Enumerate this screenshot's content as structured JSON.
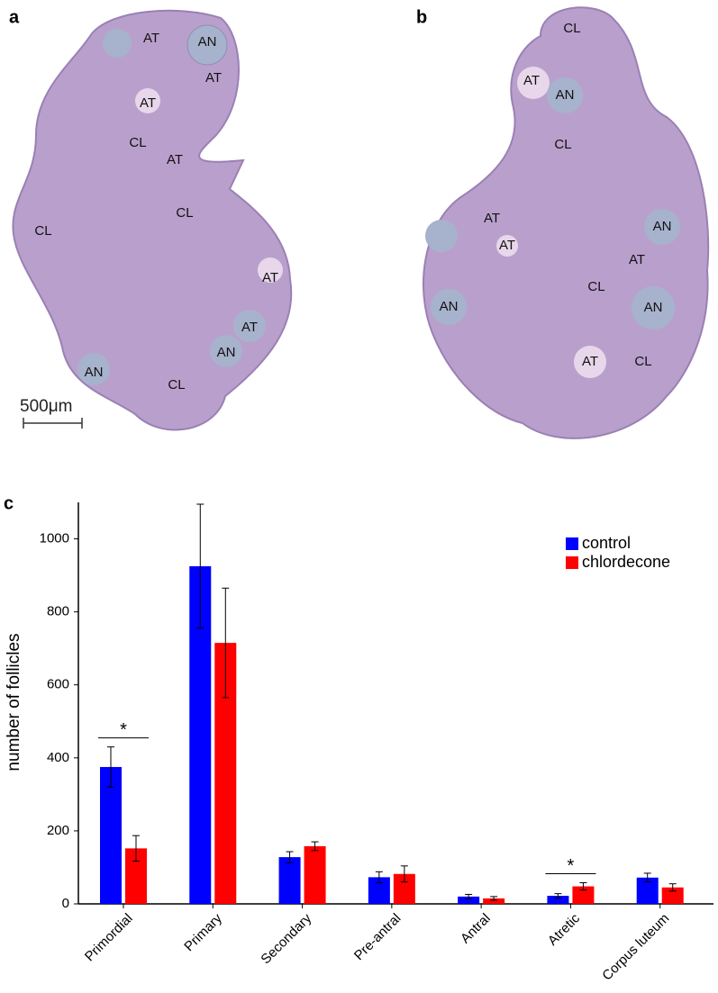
{
  "panels": [
    {
      "label": "a",
      "regions": [
        "AT",
        "AN",
        "AT",
        "AT",
        "CL",
        "AT",
        "CL",
        "CL",
        "AT",
        "AT",
        "AN",
        "AN",
        "CL"
      ],
      "scale_bar": "500μm"
    },
    {
      "label": "b",
      "regions": [
        "CL",
        "AT",
        "AN",
        "CL",
        "AT",
        "AT",
        "AN",
        "AT",
        "CL",
        "AN",
        "AN",
        "AT",
        "CL"
      ]
    }
  ],
  "chart_data": {
    "type": "bar",
    "label": "c",
    "y_label": "number of follicles",
    "categories": [
      "Primordial",
      "Primary",
      "Secondary",
      "Pre-antral",
      "Antral",
      "Atretic",
      "Corpus luteum"
    ],
    "series": [
      {
        "name": "control",
        "color": "#0000ff",
        "values": [
          375,
          925,
          128,
          73,
          20,
          22,
          72
        ],
        "errors": [
          55,
          170,
          15,
          15,
          6,
          6,
          12
        ]
      },
      {
        "name": "chlordecone",
        "color": "#ff0000",
        "values": [
          152,
          715,
          158,
          82,
          15,
          48,
          45
        ],
        "errors": [
          35,
          150,
          12,
          22,
          5,
          10,
          10
        ]
      }
    ],
    "significance": [
      {
        "category": "Primordial",
        "text": "*"
      },
      {
        "category": "Atretic",
        "text": "*"
      }
    ],
    "ylim": [
      0,
      1100
    ],
    "yticks": [
      0,
      200,
      400,
      600,
      800,
      1000
    ],
    "legend": "top-right"
  }
}
